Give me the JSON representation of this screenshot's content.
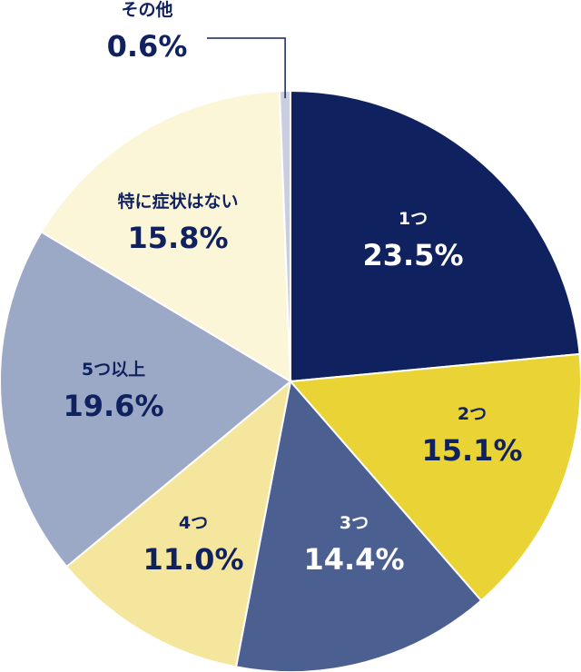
{
  "chart_data": {
    "type": "pie",
    "start_angle_deg": 0,
    "direction": "clockwise",
    "categories": [
      "1つ",
      "2つ",
      "3つ",
      "4つ",
      "5つ以上",
      "特に症状はない",
      "その他"
    ],
    "values": [
      23.5,
      15.1,
      14.4,
      11.0,
      19.6,
      15.8,
      0.6
    ],
    "labels": [
      "23.5%",
      "15.1%",
      "14.4%",
      "11.0%",
      "19.6%",
      "15.8%",
      "0.6%"
    ],
    "colors": [
      "#0f215e",
      "#e9d335",
      "#4b6091",
      "#f5e69e",
      "#9ba8c6",
      "#fcf6d9",
      "#c9cfde"
    ],
    "label_colors": [
      "#ffffff",
      "#0f215e",
      "#ffffff",
      "#0f215e",
      "#0f215e",
      "#0f215e",
      "#0f215e"
    ],
    "outside_label_index": 6
  }
}
